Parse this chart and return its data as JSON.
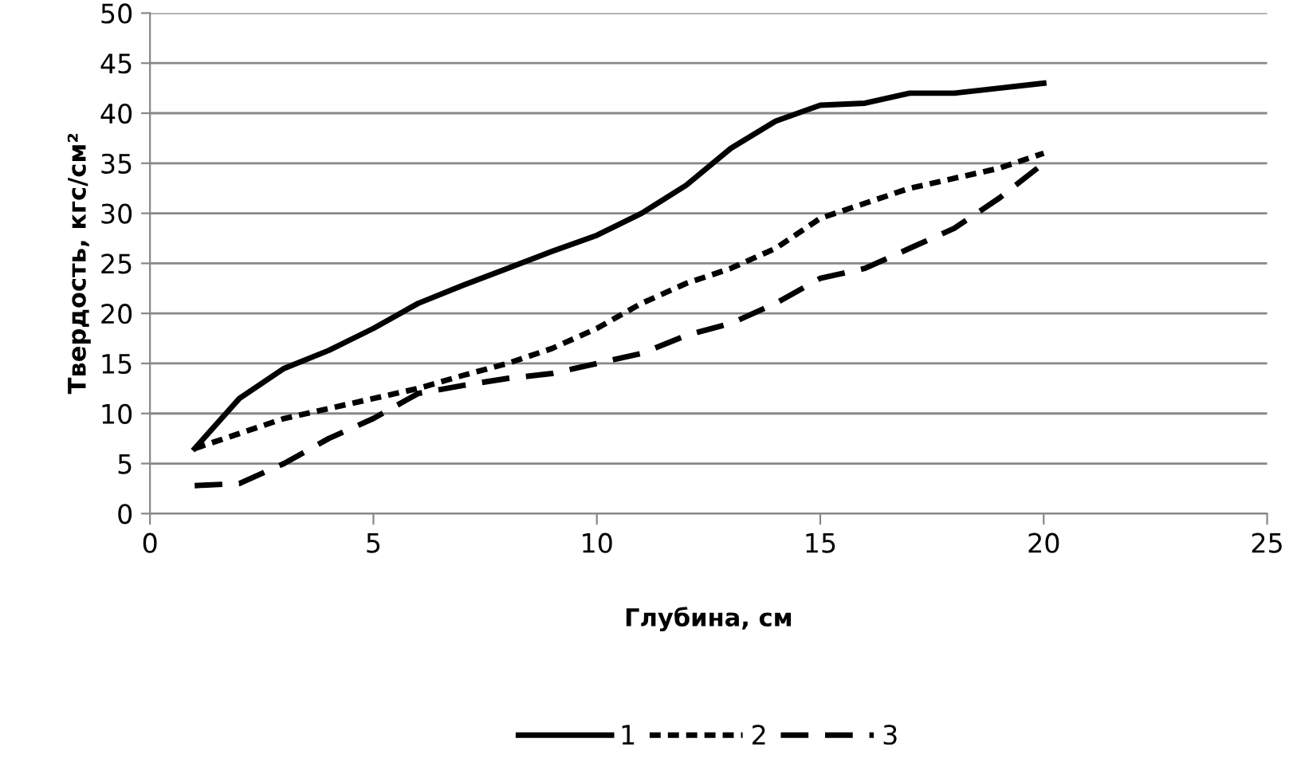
{
  "chart_data": {
    "type": "line",
    "xlabel": "Глубина, см",
    "ylabel": "Твердость, кгс/см²",
    "xlim": [
      0,
      25
    ],
    "xticks": [
      0,
      5,
      10,
      15,
      20,
      25
    ],
    "ylim": [
      0,
      50
    ],
    "yticks": [
      0,
      5,
      10,
      15,
      20,
      25,
      30,
      35,
      40,
      45,
      50
    ],
    "grid": "y",
    "legend": "bottom",
    "series": [
      {
        "name": "1",
        "color": "#000000",
        "line_style": "solid",
        "x": [
          1,
          2,
          3,
          4,
          5,
          6,
          7,
          8,
          9,
          10,
          11,
          12,
          13,
          14,
          15,
          16,
          17,
          18,
          19,
          20
        ],
        "values": [
          6.5,
          11.5,
          14.5,
          16.3,
          18.5,
          21,
          22.8,
          24.5,
          26.2,
          27.8,
          30,
          32.8,
          36.5,
          39.2,
          40.8,
          41,
          42,
          42,
          42.5,
          43
        ]
      },
      {
        "name": "2",
        "color": "#000000",
        "line_style": "dotted",
        "x": [
          1,
          2,
          3,
          4,
          5,
          6,
          7,
          8,
          9,
          10,
          11,
          12,
          13,
          14,
          15,
          16,
          17,
          18,
          19,
          20
        ],
        "values": [
          6.5,
          8,
          9.5,
          10.5,
          11.5,
          12.5,
          13.8,
          15,
          16.5,
          18.5,
          21,
          23,
          24.5,
          26.5,
          29.5,
          31,
          32.5,
          33.5,
          34.5,
          36
        ]
      },
      {
        "name": "3",
        "color": "#000000",
        "line_style": "dashed",
        "x": [
          1,
          2,
          3,
          4,
          5,
          6,
          7,
          8,
          9,
          10,
          11,
          12,
          13,
          14,
          15,
          16,
          17,
          18,
          19,
          20
        ],
        "values": [
          2.8,
          3,
          5,
          7.5,
          9.5,
          12,
          12.8,
          13.5,
          14,
          15,
          16,
          17.8,
          19,
          21,
          23.5,
          24.5,
          26.5,
          28.5,
          31.5,
          35
        ]
      }
    ]
  }
}
